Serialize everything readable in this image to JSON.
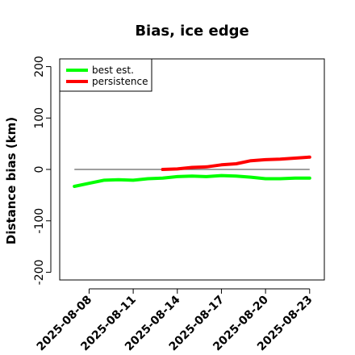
{
  "chart_data": {
    "type": "line",
    "title": "Bias, ice edge",
    "ylabel": "Distance bias (km)",
    "xlabel": "",
    "ylim": [
      -215,
      215
    ],
    "xlim": [
      "2025-08-06",
      "2025-08-24"
    ],
    "yticks": [
      -200,
      -100,
      0,
      100,
      200
    ],
    "xticks": [
      "2025-08-08",
      "2025-08-11",
      "2025-08-14",
      "2025-08-17",
      "2025-08-20",
      "2025-08-23"
    ],
    "reference_line": 0,
    "legend_position": "top-left",
    "series": [
      {
        "name": "best est.",
        "color": "#00ff00",
        "x": [
          "2025-08-07",
          "2025-08-08",
          "2025-08-09",
          "2025-08-10",
          "2025-08-11",
          "2025-08-12",
          "2025-08-13",
          "2025-08-14",
          "2025-08-15",
          "2025-08-16",
          "2025-08-17",
          "2025-08-18",
          "2025-08-19",
          "2025-08-20",
          "2025-08-21",
          "2025-08-22",
          "2025-08-23"
        ],
        "y": [
          -33,
          -27,
          -21,
          -20,
          -21,
          -18,
          -17,
          -14,
          -13,
          -14,
          -12,
          -13,
          -15,
          -18,
          -18,
          -17,
          -17
        ]
      },
      {
        "name": "persistence",
        "color": "#ff0000",
        "x": [
          "2025-08-13",
          "2025-08-14",
          "2025-08-15",
          "2025-08-16",
          "2025-08-17",
          "2025-08-18",
          "2025-08-19",
          "2025-08-20",
          "2025-08-21",
          "2025-08-22",
          "2025-08-23"
        ],
        "y": [
          0,
          1,
          4,
          5,
          9,
          11,
          17,
          19,
          20,
          22,
          24
        ]
      }
    ]
  }
}
